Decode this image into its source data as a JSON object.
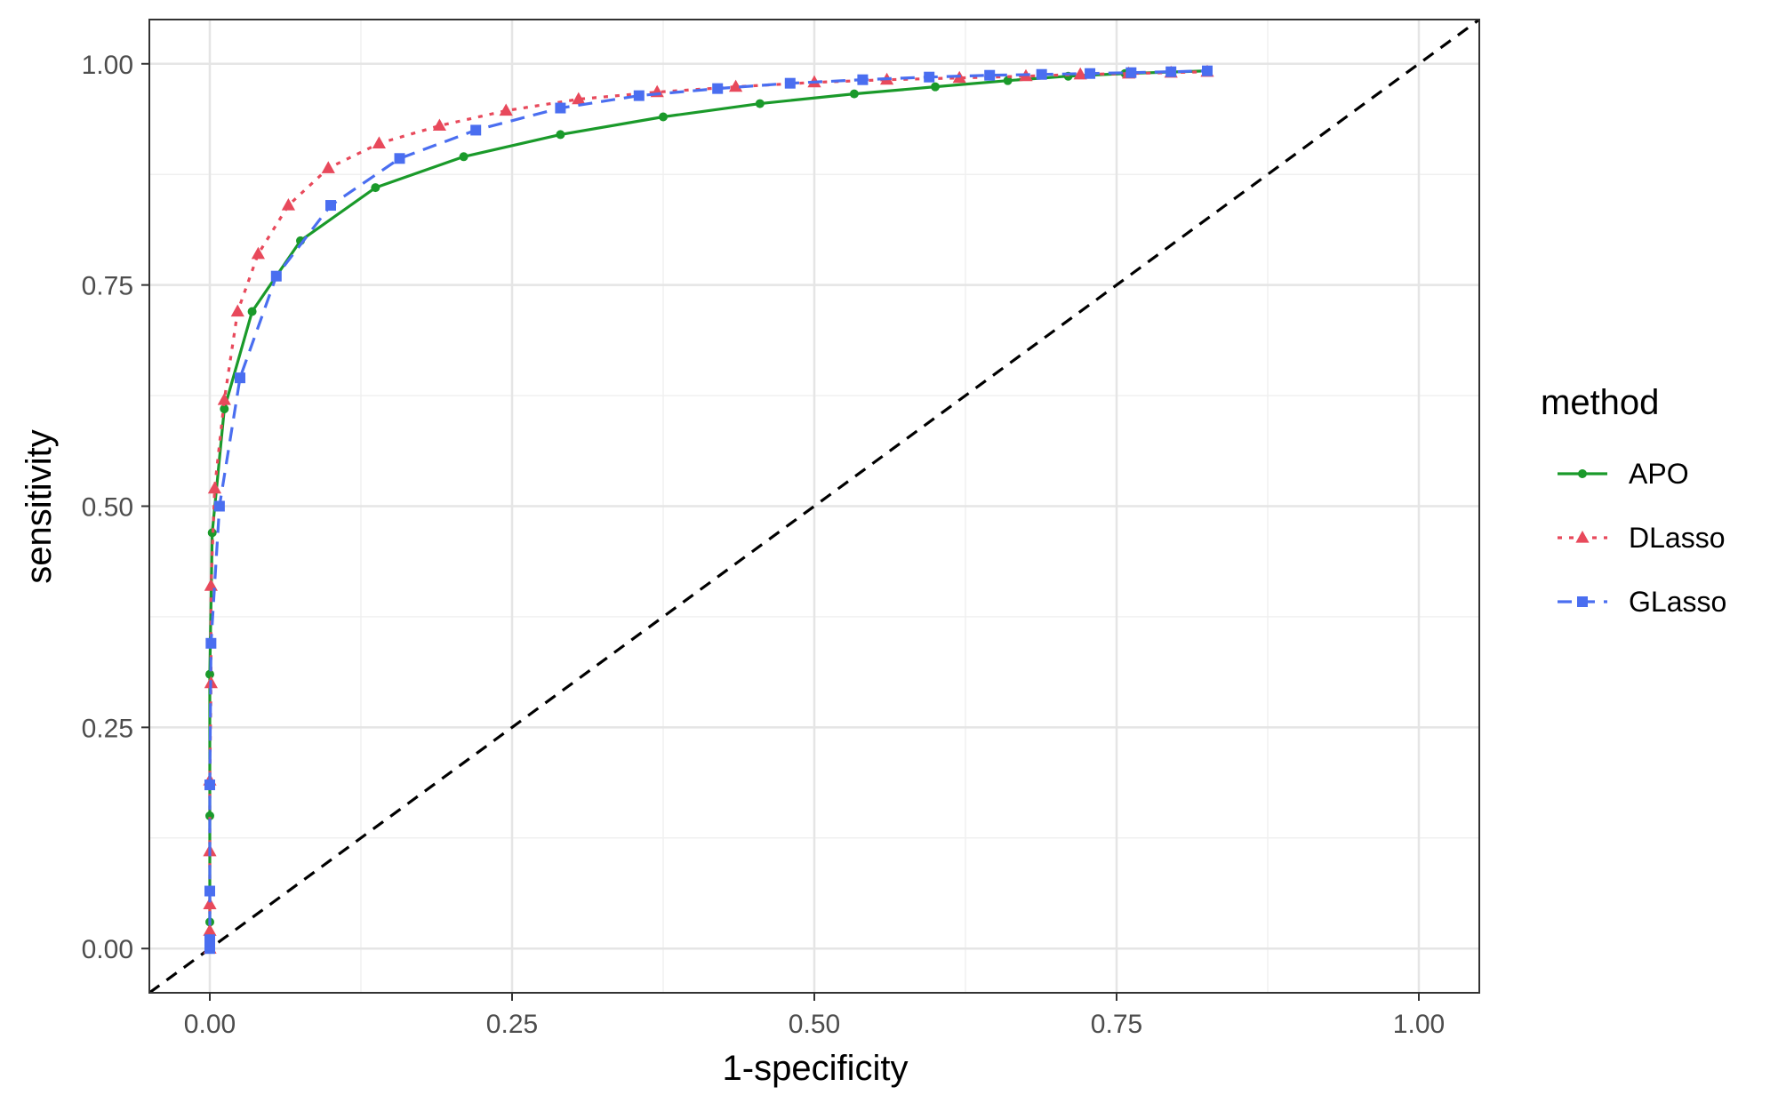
{
  "chart_data": {
    "type": "line",
    "title": "",
    "xlabel": "1-specificity",
    "ylabel": "sensitivity",
    "xlim": [
      -0.05,
      1.05
    ],
    "ylim": [
      -0.05,
      1.05
    ],
    "x_ticks": [
      0,
      0.25,
      0.5,
      0.75,
      1
    ],
    "x_tick_labels": [
      "0.00",
      "0.25",
      "0.50",
      "0.75",
      "1.00"
    ],
    "y_ticks": [
      0,
      0.25,
      0.5,
      0.75,
      1
    ],
    "y_tick_labels": [
      "0.00",
      "0.25",
      "0.50",
      "0.75",
      "1.00"
    ],
    "grid": true,
    "legend_title": "method",
    "legend_position": "right",
    "reference_line": {
      "from": [
        0,
        0
      ],
      "to": [
        1,
        1
      ],
      "style": "dashed",
      "color": "#000000"
    },
    "series": [
      {
        "name": "APO",
        "color": "#1a9a2a",
        "line_style": "solid",
        "marker": "circle",
        "points": [
          [
            0.0,
            0.0
          ],
          [
            0.0,
            0.03
          ],
          [
            0.0,
            0.15
          ],
          [
            0.0,
            0.31
          ],
          [
            0.002,
            0.47
          ],
          [
            0.012,
            0.61
          ],
          [
            0.035,
            0.72
          ],
          [
            0.075,
            0.8
          ],
          [
            0.137,
            0.86
          ],
          [
            0.21,
            0.895
          ],
          [
            0.29,
            0.92
          ],
          [
            0.375,
            0.94
          ],
          [
            0.455,
            0.955
          ],
          [
            0.533,
            0.966
          ],
          [
            0.6,
            0.974
          ],
          [
            0.66,
            0.981
          ],
          [
            0.71,
            0.986
          ],
          [
            0.757,
            0.989
          ],
          [
            0.825,
            0.992
          ]
        ]
      },
      {
        "name": "DLasso",
        "color": "#e8495b",
        "line_style": "dotted",
        "marker": "triangle",
        "points": [
          [
            0.0,
            0.0
          ],
          [
            0.0,
            0.02
          ],
          [
            0.0,
            0.05
          ],
          [
            0.0,
            0.11
          ],
          [
            0.0,
            0.19
          ],
          [
            0.001,
            0.3
          ],
          [
            0.001,
            0.41
          ],
          [
            0.004,
            0.52
          ],
          [
            0.012,
            0.62
          ],
          [
            0.023,
            0.72
          ],
          [
            0.04,
            0.785
          ],
          [
            0.065,
            0.84
          ],
          [
            0.098,
            0.882
          ],
          [
            0.14,
            0.91
          ],
          [
            0.19,
            0.93
          ],
          [
            0.245,
            0.947
          ],
          [
            0.305,
            0.96
          ],
          [
            0.37,
            0.968
          ],
          [
            0.435,
            0.974
          ],
          [
            0.5,
            0.979
          ],
          [
            0.56,
            0.982
          ],
          [
            0.62,
            0.984
          ],
          [
            0.675,
            0.986
          ],
          [
            0.72,
            0.988
          ],
          [
            0.76,
            0.989
          ],
          [
            0.795,
            0.99
          ],
          [
            0.825,
            0.991
          ]
        ]
      },
      {
        "name": "GLasso",
        "color": "#4a6ef0",
        "line_style": "dashed",
        "marker": "square",
        "points": [
          [
            0.0,
            0.0
          ],
          [
            0.0,
            0.01
          ],
          [
            0.0,
            0.065
          ],
          [
            0.0,
            0.185
          ],
          [
            0.001,
            0.345
          ],
          [
            0.008,
            0.5
          ],
          [
            0.025,
            0.645
          ],
          [
            0.055,
            0.76
          ],
          [
            0.1,
            0.84
          ],
          [
            0.157,
            0.893
          ],
          [
            0.22,
            0.925
          ],
          [
            0.29,
            0.95
          ],
          [
            0.355,
            0.964
          ],
          [
            0.42,
            0.972
          ],
          [
            0.48,
            0.978
          ],
          [
            0.54,
            0.982
          ],
          [
            0.595,
            0.985
          ],
          [
            0.645,
            0.987
          ],
          [
            0.688,
            0.988
          ],
          [
            0.728,
            0.989
          ],
          [
            0.762,
            0.99
          ],
          [
            0.795,
            0.991
          ],
          [
            0.825,
            0.992
          ]
        ]
      }
    ]
  }
}
